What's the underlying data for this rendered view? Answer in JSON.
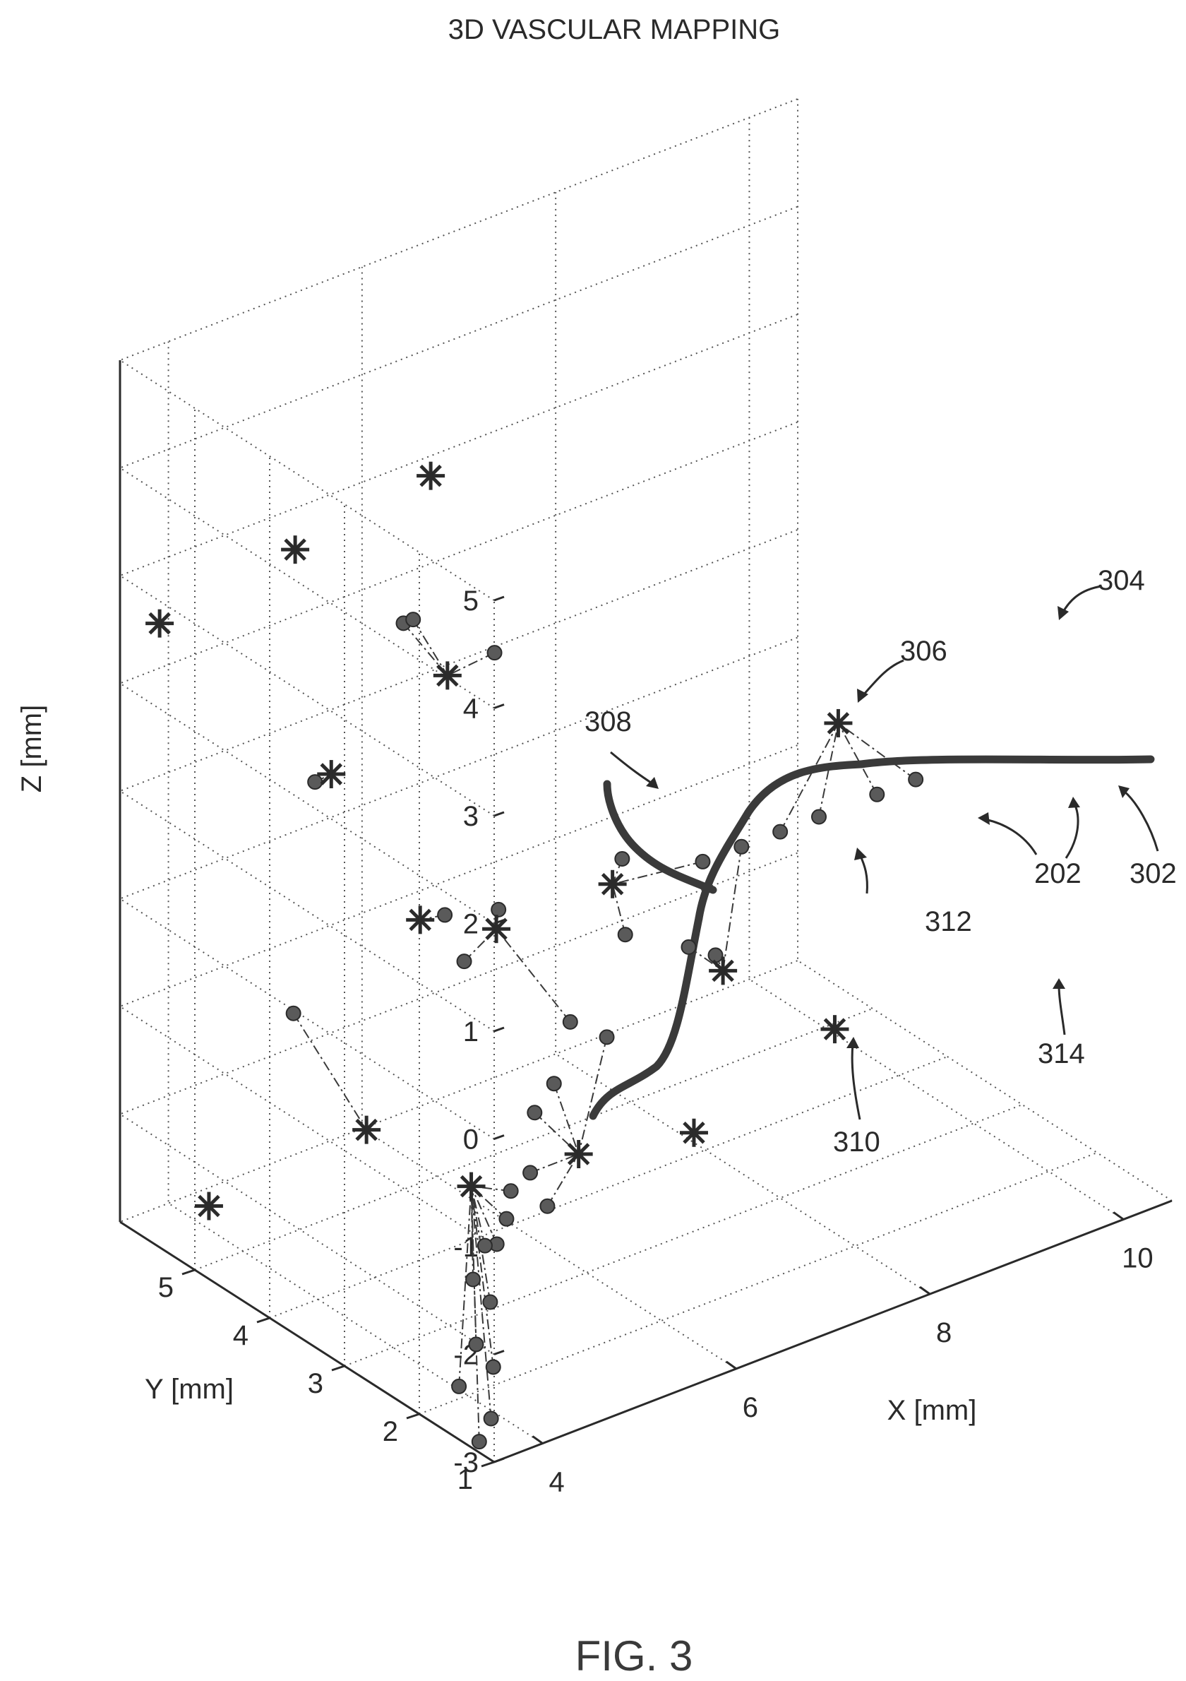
{
  "figure": {
    "caption": "FIG. 3",
    "title": "3D VASCULAR MAPPING"
  },
  "chart_data": {
    "type": "scatter",
    "title": "3D VASCULAR MAPPING",
    "xlabel": "X [mm]",
    "ylabel": "Y [mm]",
    "zlabel": "Z [mm]",
    "xlim": [
      3.5,
      10.5
    ],
    "ylim": [
      1,
      6
    ],
    "zlim": [
      -3,
      5
    ],
    "xticks": [
      "4",
      "6",
      "8",
      "10"
    ],
    "yticks": [
      "1",
      "2",
      "3",
      "4",
      "5"
    ],
    "zticks": [
      "-3",
      "-2",
      "-1",
      "0",
      "1",
      "2",
      "3",
      "4",
      "5"
    ],
    "grid": true,
    "reference_labels": [
      "202",
      "302",
      "304",
      "306",
      "308",
      "310",
      "312",
      "314"
    ],
    "series": [
      {
        "marker": "asterisk",
        "points": [
          {
            "x": 3.6,
            "y": 5.6,
            "z": 2.7
          },
          {
            "x": 5.0,
            "y": 5.6,
            "z": 2.9
          },
          {
            "x": 6.4,
            "y": 5.6,
            "z": 3.1
          },
          {
            "x": 5.8,
            "y": 4.6,
            "z": 1.9
          },
          {
            "x": 4.6,
            "y": 4.6,
            "z": 1.4
          },
          {
            "x": 4.5,
            "y": 4.0,
            "z": -1.6
          },
          {
            "x": 3.8,
            "y": 5.2,
            "z": -2.6
          },
          {
            "x": 4.9,
            "y": 3.8,
            "z": 0.3
          },
          {
            "x": 5.3,
            "y": 3.3,
            "z": 0.3
          },
          {
            "x": 6.5,
            "y": 3.3,
            "z": 0.3
          },
          {
            "x": 8.6,
            "y": 3.0,
            "z": 1.2
          },
          {
            "x": 6.8,
            "y": 2.6,
            "z": -1.8
          },
          {
            "x": 7.1,
            "y": 2.6,
            "z": -0.4
          },
          {
            "x": 4.5,
            "y": 2.6,
            "z": -1.5
          },
          {
            "x": 5.3,
            "y": 2.2,
            "z": -1.3
          },
          {
            "x": 8.1,
            "y": 2.4,
            "z": -1.2
          }
        ]
      },
      {
        "marker": "dot",
        "points": [
          {
            "x": 5.5,
            "y": 4.8,
            "z": 2.4
          },
          {
            "x": 5.6,
            "y": 4.8,
            "z": 2.4
          },
          {
            "x": 4.2,
            "y": 4.3,
            "z": 1.6
          },
          {
            "x": 5.9,
            "y": 4.1,
            "z": 2.3
          },
          {
            "x": 3.9,
            "y": 4.2,
            "z": -0.4
          },
          {
            "x": 5.0,
            "y": 3.6,
            "z": 0.4
          },
          {
            "x": 5.2,
            "y": 3.6,
            "z": -0.1
          },
          {
            "x": 5.4,
            "y": 3.4,
            "z": 0.4
          },
          {
            "x": 6.6,
            "y": 3.3,
            "z": 0.5
          },
          {
            "x": 7.2,
            "y": 3.0,
            "z": 0.4
          },
          {
            "x": 7.6,
            "y": 3.0,
            "z": 0.4
          },
          {
            "x": 8.0,
            "y": 3.0,
            "z": 0.4
          },
          {
            "x": 8.4,
            "y": 3.0,
            "z": 0.4
          },
          {
            "x": 9.0,
            "y": 3.0,
            "z": 0.4
          },
          {
            "x": 9.4,
            "y": 3.0,
            "z": 0.4
          },
          {
            "x": 6.4,
            "y": 3.0,
            "z": 0.0
          },
          {
            "x": 6.9,
            "y": 2.8,
            "z": -0.2
          },
          {
            "x": 7.1,
            "y": 2.7,
            "z": -0.3
          },
          {
            "x": 5.6,
            "y": 2.7,
            "z": -0.4
          },
          {
            "x": 5.9,
            "y": 2.6,
            "z": -0.6
          },
          {
            "x": 5.0,
            "y": 2.4,
            "z": -0.9
          },
          {
            "x": 5.2,
            "y": 2.4,
            "z": -0.7
          },
          {
            "x": 4.6,
            "y": 2.2,
            "z": -1.4
          },
          {
            "x": 4.8,
            "y": 2.2,
            "z": -1.3
          },
          {
            "x": 4.9,
            "y": 2.1,
            "z": -1.6
          },
          {
            "x": 4.3,
            "y": 2.0,
            "z": -1.7
          },
          {
            "x": 4.4,
            "y": 2.0,
            "z": -1.5
          },
          {
            "x": 4.1,
            "y": 1.9,
            "z": -1.6
          },
          {
            "x": 3.9,
            "y": 1.8,
            "z": -1.8
          },
          {
            "x": 4.0,
            "y": 1.7,
            "z": -2.0
          },
          {
            "x": 3.7,
            "y": 1.5,
            "z": -2.2
          },
          {
            "x": 3.8,
            "y": 1.4,
            "z": -2.4
          },
          {
            "x": 3.6,
            "y": 1.6,
            "z": -2.6
          },
          {
            "x": 3.7,
            "y": 1.3,
            "z": -2.8
          },
          {
            "x": 3.5,
            "y": 1.2,
            "z": -2.9
          }
        ]
      }
    ]
  }
}
